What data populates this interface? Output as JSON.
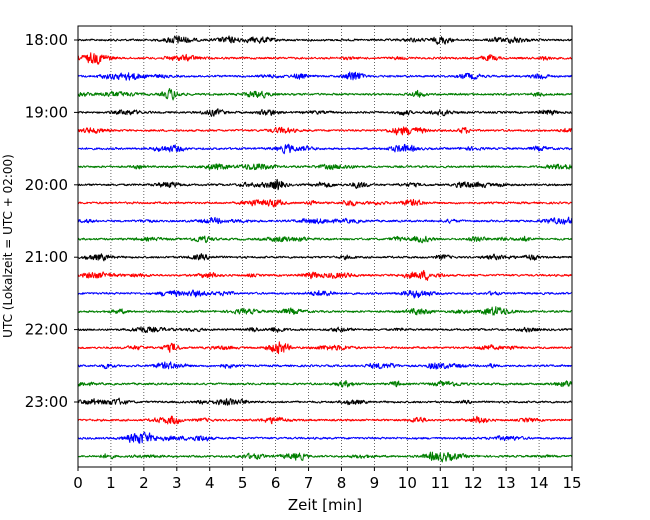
{
  "chart_data": {
    "type": "line",
    "title": "",
    "xlabel": "Zeit  [min]",
    "ylabel": "UTC (Lokalzeit = UTC + 02:00)",
    "xlim": [
      0,
      15
    ],
    "x_ticks": [
      "0",
      "1",
      "2",
      "3",
      "4",
      "5",
      "6",
      "7",
      "8",
      "9",
      "10",
      "11",
      "12",
      "13",
      "14",
      "15"
    ],
    "y_ticks": [
      "18:00",
      "19:00",
      "20:00",
      "21:00",
      "22:00",
      "23:00"
    ],
    "grid": "vertical dotted at each minute",
    "trace_colors": [
      "#000000",
      "#ff0000",
      "#0000ff",
      "#007f00"
    ],
    "trace_count": 24,
    "trace_start_times": [
      "18:00",
      "18:15",
      "18:30",
      "18:45",
      "19:00",
      "19:15",
      "19:30",
      "19:45",
      "20:00",
      "20:15",
      "20:30",
      "20:45",
      "21:00",
      "21:15",
      "21:30",
      "21:45",
      "22:00",
      "22:15",
      "22:30",
      "22:45",
      "23:00",
      "23:15",
      "23:30",
      "23:45"
    ]
  }
}
